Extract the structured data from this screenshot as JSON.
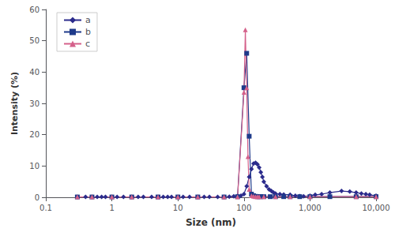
{
  "chart_data": {
    "type": "line",
    "xlabel": "Size (nm)",
    "ylabel": "Intensity (%)",
    "log": "x",
    "xlim": [
      0.1,
      10000
    ],
    "xticks": [
      0.1,
      1,
      10,
      100,
      {
        "value": 1000,
        "label": "1,000"
      },
      {
        "value": 10000,
        "label": "10,000"
      }
    ],
    "ylim": [
      0,
      60
    ],
    "yticks": [
      0,
      10,
      20,
      30,
      40,
      50,
      60
    ],
    "grid": false,
    "legend": "upper left",
    "series": [
      {
        "name": "a",
        "color": "#2B2B8C",
        "marker": "diamond",
        "x": [
          0.3,
          0.4,
          0.5,
          0.6,
          0.7,
          0.8,
          1.0,
          1.2,
          1.5,
          2.0,
          2.5,
          3.0,
          4.0,
          5.0,
          6.0,
          7.0,
          8.0,
          10,
          12,
          15,
          20,
          25,
          30,
          40,
          50,
          60,
          70,
          80,
          90,
          100,
          110,
          120,
          130,
          140,
          150,
          160,
          170,
          180,
          190,
          200,
          220,
          240,
          260,
          280,
          300,
          350,
          400,
          500,
          600,
          700,
          800,
          1000,
          1200,
          1500,
          2000,
          3000,
          4000,
          5000,
          6000,
          7000,
          8000,
          10000
        ],
        "values": [
          0.1,
          0.1,
          0.1,
          0.1,
          0.1,
          0.1,
          0.1,
          0.1,
          0.1,
          0.1,
          0.1,
          0.1,
          0.1,
          0.1,
          0.1,
          0.1,
          0.1,
          0.1,
          0.1,
          0.1,
          0.1,
          0.1,
          0.1,
          0.1,
          0.15,
          0.2,
          0.3,
          0.4,
          0.5,
          1.0,
          3.5,
          6.5,
          9.0,
          10.8,
          11.0,
          10.5,
          9.5,
          8.0,
          6.5,
          5.0,
          3.5,
          2.5,
          2.0,
          1.5,
          1.2,
          1.0,
          0.9,
          0.8,
          0.5,
          0.4,
          0.3,
          0.5,
          0.8,
          1.0,
          1.5,
          2.0,
          1.8,
          1.5,
          1.2,
          1.0,
          0.8,
          0.5
        ]
      },
      {
        "name": "b",
        "color": "#1E3A8A",
        "marker": "square",
        "x": [
          0.3,
          0.5,
          1.0,
          2.0,
          5.0,
          10,
          20,
          50,
          80,
          100,
          110,
          120,
          130,
          140,
          150,
          160,
          170,
          180,
          200,
          250,
          300,
          400,
          500,
          700,
          1000,
          2000,
          5000,
          10000
        ],
        "values": [
          0.1,
          0.1,
          0.1,
          0.1,
          0.1,
          0.1,
          0.1,
          0.1,
          0.2,
          35.0,
          46.0,
          19.5,
          1.0,
          0.5,
          0.3,
          0.2,
          0.2,
          0.2,
          0.2,
          0.2,
          0.2,
          0.2,
          0.2,
          0.2,
          0.2,
          0.2,
          0.2,
          0.2
        ]
      },
      {
        "name": "c",
        "color": "#D4608A",
        "marker": "triangle",
        "x": [
          0.3,
          0.5,
          1.0,
          2.0,
          5.0,
          10,
          20,
          50,
          80,
          100,
          105,
          110,
          115,
          120,
          130,
          140,
          150,
          160,
          170,
          200,
          300,
          500,
          1000,
          5000,
          10000
        ],
        "values": [
          0.1,
          0.1,
          0.1,
          0.1,
          0.1,
          0.1,
          0.1,
          0.1,
          0.1,
          33.5,
          53.5,
          35.0,
          13.0,
          2.5,
          0.5,
          0.3,
          0.2,
          0.2,
          0.2,
          0.2,
          0.2,
          0.2,
          0.2,
          0.2,
          0.2
        ]
      }
    ]
  }
}
